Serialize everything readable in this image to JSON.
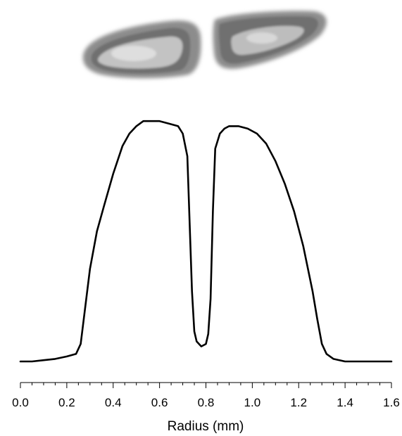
{
  "chart_data": {
    "type": "line",
    "xlabel": "Radius (mm)",
    "ylabel": "",
    "xlim": [
      0.0,
      1.6
    ],
    "ylim": [
      0,
      1.0
    ],
    "x_ticks": [
      "0.0",
      "0.2",
      "0.4",
      "0.6",
      "0.8",
      "1.0",
      "1.2",
      "1.4",
      "1.6"
    ],
    "x_tick_values": [
      0.0,
      0.2,
      0.4,
      0.6,
      0.8,
      1.0,
      1.2,
      1.4,
      1.6
    ],
    "x_minor_step": 0.05,
    "grid": false,
    "legend": "none",
    "line_color": "#000000",
    "series": [
      {
        "x": [
          0.0,
          0.05,
          0.1,
          0.15,
          0.2,
          0.24,
          0.26,
          0.28,
          0.3,
          0.33,
          0.36,
          0.4,
          0.44,
          0.47,
          0.5,
          0.53,
          0.56,
          0.6,
          0.64,
          0.68,
          0.7,
          0.72,
          0.73,
          0.74,
          0.75,
          0.76,
          0.78,
          0.8,
          0.81,
          0.82,
          0.83,
          0.84,
          0.86,
          0.88,
          0.9,
          0.94,
          0.98,
          1.02,
          1.06,
          1.1,
          1.14,
          1.18,
          1.22,
          1.26,
          1.28,
          1.3,
          1.32,
          1.35,
          1.4,
          1.5,
          1.6
        ],
        "y": [
          0.0,
          0.0,
          0.005,
          0.01,
          0.02,
          0.03,
          0.07,
          0.22,
          0.37,
          0.52,
          0.62,
          0.75,
          0.86,
          0.91,
          0.94,
          0.96,
          0.96,
          0.96,
          0.95,
          0.94,
          0.91,
          0.82,
          0.55,
          0.28,
          0.12,
          0.08,
          0.06,
          0.07,
          0.11,
          0.25,
          0.6,
          0.85,
          0.91,
          0.93,
          0.94,
          0.94,
          0.93,
          0.91,
          0.87,
          0.8,
          0.71,
          0.6,
          0.46,
          0.28,
          0.17,
          0.07,
          0.03,
          0.01,
          0.0,
          0.0,
          0.0
        ]
      }
    ]
  },
  "inset_image": {
    "description_kind": "grayscale beam cross-section",
    "colors": [
      "#8c8c8c",
      "#6f6f6f",
      "#c8c8c8",
      "#dddddd"
    ]
  }
}
